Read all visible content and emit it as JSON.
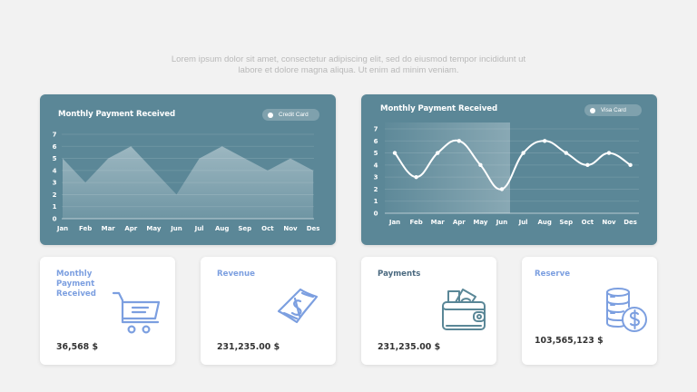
{
  "subtitle": {
    "line1": "Lorem ipsum dolor sit amet, consectetur adipiscing elit, sed do eiusmod tempor incididunt ut",
    "line2": "labore et dolore magna aliqua. Ut enim ad minim veniam."
  },
  "colors": {
    "background": "#f2f2f2",
    "panel": "#5b8797",
    "accent_blue": "#7c9fe0",
    "accent_teal": "#4b6a80",
    "value_text": "#333333"
  },
  "charts": {
    "left": {
      "title": "Monthly Payment Received",
      "legend": "Credit Card"
    },
    "right": {
      "title": "Monthly Payment Received",
      "legend": "Visa Card"
    }
  },
  "cards": [
    {
      "title": "Monthly Payment Received",
      "value": "36,568 $",
      "icon": "shopping-cart-icon"
    },
    {
      "title": "Revenue",
      "value": "231,235.00 $",
      "icon": "banknote-dollar-icon"
    },
    {
      "title": "Payments",
      "value": "231,235.00 $",
      "icon": "wallet-icon"
    },
    {
      "title": "Reserve",
      "value": "103,565,123 $",
      "icon": "coin-stack-dollar-icon"
    }
  ],
  "chart_data": [
    {
      "type": "area",
      "title": "Monthly Payment Received",
      "legend": [
        "Credit Card"
      ],
      "legend_position": "top-right",
      "categories": [
        "Jan",
        "Feb",
        "Mar",
        "Apr",
        "May",
        "Jun",
        "Jul",
        "Aug",
        "Sep",
        "Oct",
        "Nov",
        "Des"
      ],
      "series": [
        {
          "name": "Credit Card",
          "values": [
            5,
            3,
            5,
            6,
            4,
            2,
            5,
            6,
            5,
            4,
            5,
            4
          ]
        }
      ],
      "yticks": [
        0,
        1,
        2,
        3,
        4,
        5,
        6,
        7
      ],
      "ylim": [
        0,
        7
      ],
      "xlabel": "",
      "ylabel": "",
      "grid": true
    },
    {
      "type": "line",
      "title": "Monthly Payment Received",
      "legend": [
        "Visa Card"
      ],
      "legend_position": "top-right",
      "categories": [
        "Jan",
        "Feb",
        "Mar",
        "Apr",
        "May",
        "Jun",
        "Jul",
        "Aug",
        "Sep",
        "Oct",
        "Nov",
        "Des"
      ],
      "series": [
        {
          "name": "Visa Card",
          "values": [
            5,
            3,
            5,
            6,
            4,
            2,
            5,
            6,
            5,
            4,
            5,
            4
          ]
        }
      ],
      "yticks": [
        0,
        1,
        2,
        3,
        4,
        5,
        6,
        7
      ],
      "ylim": [
        0,
        7
      ],
      "xlabel": "",
      "ylabel": "",
      "grid": true,
      "highlight_range": [
        "Jan",
        "Jun"
      ],
      "smooth": true
    }
  ]
}
